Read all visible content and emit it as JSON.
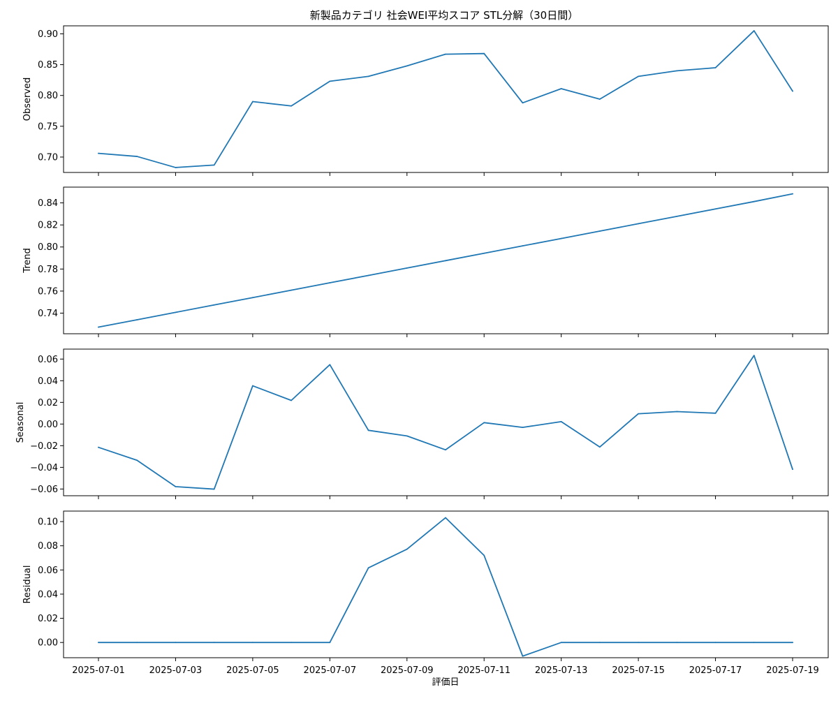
{
  "chart_data": {
    "type": "line",
    "title": "新製品カテゴリ 社会WEI平均スコア STL分解（30日間）",
    "xlabel": "評価日",
    "line_color": "#1f77b4",
    "x": [
      "2025-07-01",
      "2025-07-02",
      "2025-07-03",
      "2025-07-04",
      "2025-07-05",
      "2025-07-06",
      "2025-07-07",
      "2025-07-08",
      "2025-07-09",
      "2025-07-10",
      "2025-07-11",
      "2025-07-12",
      "2025-07-13",
      "2025-07-14",
      "2025-07-15",
      "2025-07-16",
      "2025-07-17",
      "2025-07-18",
      "2025-07-19"
    ],
    "x_tick_labels": [
      "2025-07-01",
      "2025-07-03",
      "2025-07-05",
      "2025-07-07",
      "2025-07-09",
      "2025-07-11",
      "2025-07-13",
      "2025-07-15",
      "2025-07-17",
      "2025-07-19"
    ],
    "panels": [
      {
        "ylabel": "Observed",
        "ylim": [
          0.675,
          0.913
        ],
        "yticks": [
          0.7,
          0.75,
          0.8,
          0.85,
          0.9
        ],
        "ytick_labels": [
          "0.70",
          "0.75",
          "0.80",
          "0.85",
          "0.90"
        ],
        "values": [
          0.706,
          0.701,
          0.683,
          0.687,
          0.79,
          0.783,
          0.823,
          0.831,
          0.848,
          0.867,
          0.868,
          0.788,
          0.811,
          0.794,
          0.831,
          0.84,
          0.845,
          0.905,
          0.807
        ]
      },
      {
        "ylabel": "Trend",
        "ylim": [
          0.7213,
          0.8543
        ],
        "yticks": [
          0.74,
          0.76,
          0.78,
          0.8,
          0.82,
          0.84
        ],
        "ytick_labels": [
          "0.74",
          "0.76",
          "0.78",
          "0.80",
          "0.82",
          "0.84"
        ],
        "values": [
          0.7273,
          0.734,
          0.7407,
          0.7474,
          0.7541,
          0.7608,
          0.7675,
          0.7742,
          0.7809,
          0.7876,
          0.7943,
          0.801,
          0.8077,
          0.8144,
          0.8211,
          0.8278,
          0.8345,
          0.8412,
          0.8482
        ]
      },
      {
        "ylabel": "Seasonal",
        "ylim": [
          -0.0662,
          0.0692
        ],
        "yticks": [
          -0.06,
          -0.04,
          -0.02,
          0.0,
          0.02,
          0.04,
          0.06
        ],
        "ytick_labels": [
          "−0.06",
          "−0.04",
          "−0.02",
          "0.00",
          "0.02",
          "0.04",
          "0.06"
        ],
        "values": [
          -0.0215,
          -0.0335,
          -0.0578,
          -0.0601,
          0.0353,
          0.0218,
          0.0548,
          -0.0058,
          -0.011,
          -0.0238,
          0.0013,
          -0.0031,
          0.0022,
          -0.0212,
          0.0095,
          0.0115,
          0.01,
          0.0633,
          -0.0418
        ]
      },
      {
        "ylabel": "Residual",
        "ylim": [
          -0.0126,
          0.1087
        ],
        "yticks": [
          0.0,
          0.02,
          0.04,
          0.06,
          0.08,
          0.1
        ],
        "ytick_labels": [
          "0.00",
          "0.02",
          "0.04",
          "0.06",
          "0.08",
          "0.10"
        ],
        "values": [
          0,
          0,
          0,
          0,
          0,
          0,
          0,
          0.0617,
          0.0772,
          0.1032,
          0.072,
          -0.0113,
          0,
          0,
          0,
          0,
          0,
          0,
          0
        ]
      }
    ]
  }
}
